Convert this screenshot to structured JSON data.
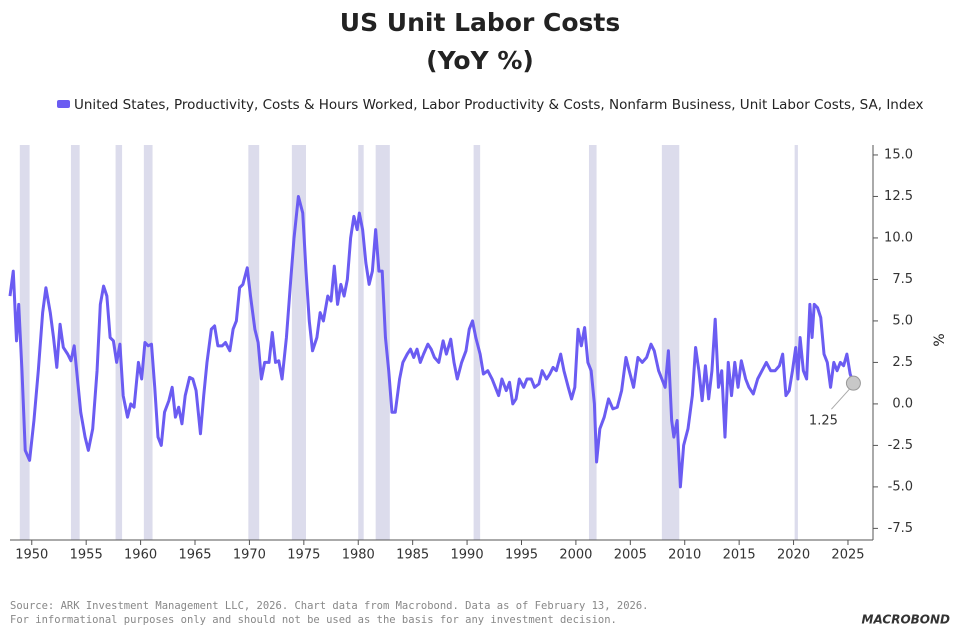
{
  "chart_data": {
    "type": "line",
    "title": "US Unit Labor Costs",
    "subtitle": "(YoY %)",
    "y_axis_label": "%",
    "source": [
      "Source: ARK Investment Management LLC, 2026. Chart data from Macrobond. Data as of February 13, 2026.",
      "For informational purposes only and should not be used as the basis for any investment decision."
    ],
    "logo": "MACROBOND",
    "xlim": [
      1948,
      2027.3
    ],
    "xticks": [
      1950,
      1955,
      1960,
      1965,
      1970,
      1975,
      1980,
      1985,
      1990,
      1995,
      2000,
      2005,
      2010,
      2015,
      2020,
      2025
    ],
    "ylim": [
      -8.2,
      15.6
    ],
    "yticks": [
      {
        "value": -7.5,
        "label": "-7.5"
      },
      {
        "value": -5,
        "label": "-5.0"
      },
      {
        "value": -2.5,
        "label": "-2.5"
      },
      {
        "value": 0,
        "label": "0.0"
      },
      {
        "value": 2.5,
        "label": "2.5"
      },
      {
        "value": 5,
        "label": "5.0"
      },
      {
        "value": 7.5,
        "label": "7.5"
      },
      {
        "value": 10,
        "label": "10.0"
      },
      {
        "value": 12.5,
        "label": "12.5"
      },
      {
        "value": 15,
        "label": "15.0"
      }
    ],
    "grid": false,
    "recession_color": "#dcdcec",
    "recessions": [
      [
        1948.9,
        1949.8
      ],
      [
        1953.6,
        1954.4
      ],
      [
        1957.7,
        1958.3
      ],
      [
        1960.3,
        1961.1
      ],
      [
        1969.9,
        1970.9
      ],
      [
        1973.9,
        1975.2
      ],
      [
        1980.0,
        1980.5
      ],
      [
        1981.6,
        1982.9
      ],
      [
        1990.6,
        1991.2
      ],
      [
        2001.2,
        2001.9
      ],
      [
        2007.9,
        2009.5
      ],
      [
        2020.1,
        2020.4
      ]
    ],
    "x": [
      1948.0,
      1948.3,
      1948.6,
      1948.8,
      1949.1,
      1949.4,
      1949.8,
      1950.2,
      1950.6,
      1951.0,
      1951.3,
      1951.7,
      1952.0,
      1952.3,
      1952.6,
      1952.9,
      1953.3,
      1953.6,
      1953.9,
      1954.2,
      1954.5,
      1954.9,
      1955.2,
      1955.6,
      1956.0,
      1956.3,
      1956.6,
      1956.9,
      1957.2,
      1957.5,
      1957.8,
      1958.1,
      1958.4,
      1958.8,
      1959.1,
      1959.4,
      1959.8,
      1960.1,
      1960.4,
      1960.7,
      1961.0,
      1961.3,
      1961.6,
      1961.9,
      1962.2,
      1962.6,
      1962.9,
      1963.2,
      1963.5,
      1963.8,
      1964.1,
      1964.5,
      1964.8,
      1965.1,
      1965.5,
      1965.8,
      1966.1,
      1966.5,
      1966.8,
      1967.1,
      1967.5,
      1967.8,
      1968.2,
      1968.5,
      1968.8,
      1969.1,
      1969.4,
      1969.8,
      1970.1,
      1970.5,
      1970.8,
      1971.1,
      1971.4,
      1971.8,
      1972.1,
      1972.4,
      1972.7,
      1973.0,
      1973.4,
      1973.8,
      1974.1,
      1974.5,
      1974.9,
      1975.2,
      1975.5,
      1975.8,
      1976.2,
      1976.5,
      1976.8,
      1977.2,
      1977.5,
      1977.8,
      1978.1,
      1978.4,
      1978.7,
      1979.0,
      1979.3,
      1979.6,
      1979.9,
      1980.1,
      1980.4,
      1980.7,
      1981.0,
      1981.3,
      1981.6,
      1981.9,
      1982.2,
      1982.5,
      1982.8,
      1983.1,
      1983.4,
      1983.8,
      1984.1,
      1984.5,
      1984.8,
      1985.1,
      1985.4,
      1985.7,
      1986.0,
      1986.4,
      1986.7,
      1987.0,
      1987.4,
      1987.8,
      1988.1,
      1988.5,
      1988.8,
      1989.1,
      1989.5,
      1989.9,
      1990.2,
      1990.5,
      1990.8,
      1991.2,
      1991.5,
      1991.9,
      1992.3,
      1992.6,
      1992.9,
      1993.2,
      1993.6,
      1993.9,
      1994.2,
      1994.5,
      1994.8,
      1995.2,
      1995.5,
      1995.9,
      1996.2,
      1996.6,
      1996.9,
      1997.3,
      1997.6,
      1997.9,
      1998.2,
      1998.6,
      1998.9,
      1999.3,
      1999.6,
      1999.9,
      2000.2,
      2000.5,
      2000.8,
      2001.1,
      2001.4,
      2001.7,
      2001.9,
      2002.2,
      2002.6,
      2003.0,
      2003.4,
      2003.8,
      2004.2,
      2004.6,
      2004.9,
      2005.3,
      2005.7,
      2006.1,
      2006.5,
      2006.9,
      2007.2,
      2007.6,
      2007.9,
      2008.2,
      2008.5,
      2008.8,
      2009.0,
      2009.3,
      2009.6,
      2009.9,
      2010.3,
      2010.7,
      2011.0,
      2011.3,
      2011.6,
      2011.9,
      2012.2,
      2012.5,
      2012.8,
      2013.1,
      2013.4,
      2013.7,
      2014.0,
      2014.3,
      2014.6,
      2014.9,
      2015.2,
      2015.6,
      2015.9,
      2016.3,
      2016.7,
      2017.1,
      2017.5,
      2017.9,
      2018.3,
      2018.7,
      2019.0,
      2019.3,
      2019.6,
      2019.9,
      2020.2,
      2020.4,
      2020.6,
      2020.9,
      2021.2,
      2021.5,
      2021.7,
      2021.9,
      2022.2,
      2022.5,
      2022.8,
      2023.1,
      2023.4,
      2023.7,
      2024.0,
      2024.3,
      2024.6,
      2024.9,
      2025.2,
      2025.5
    ],
    "series": [
      {
        "name": "United States, Productivity, Costs & Hours Worked, Labor Productivity & Costs, Nonfarm Business, Unit Labor Costs, SA, Index",
        "color": "#6b5cf2",
        "values": [
          6.5,
          8.0,
          3.8,
          6.0,
          2.0,
          -2.8,
          -3.4,
          -1.0,
          2.0,
          5.5,
          7.0,
          5.5,
          4.0,
          2.2,
          4.8,
          3.4,
          3.0,
          2.6,
          3.5,
          1.5,
          -0.5,
          -2.0,
          -2.8,
          -1.5,
          2.0,
          6.0,
          7.1,
          6.5,
          4.0,
          3.8,
          2.5,
          3.6,
          0.5,
          -0.8,
          0.0,
          -0.2,
          2.5,
          1.5,
          3.7,
          3.5,
          3.6,
          1.0,
          -2.0,
          -2.5,
          -0.5,
          0.2,
          1.0,
          -0.8,
          -0.2,
          -1.2,
          0.5,
          1.6,
          1.5,
          0.8,
          -1.8,
          0.5,
          2.5,
          4.5,
          4.7,
          3.5,
          3.5,
          3.7,
          3.2,
          4.5,
          5.0,
          7.0,
          7.2,
          8.2,
          6.5,
          4.5,
          3.7,
          1.5,
          2.5,
          2.5,
          4.3,
          2.5,
          2.6,
          1.5,
          4.0,
          7.5,
          10.0,
          12.5,
          11.5,
          8.0,
          5.0,
          3.2,
          4.0,
          5.5,
          5.0,
          6.5,
          6.2,
          8.3,
          6.0,
          7.2,
          6.5,
          7.5,
          10.0,
          11.3,
          10.5,
          11.5,
          10.5,
          8.5,
          7.2,
          8.0,
          10.5,
          8.0,
          8.0,
          4.0,
          2.0,
          -0.5,
          -0.5,
          1.5,
          2.5,
          3.0,
          3.3,
          2.8,
          3.3,
          2.5,
          3.0,
          3.6,
          3.3,
          2.8,
          2.5,
          3.8,
          3.0,
          3.9,
          2.5,
          1.5,
          2.5,
          3.2,
          4.5,
          5.0,
          4.0,
          3.0,
          1.8,
          2.0,
          1.5,
          1.0,
          0.5,
          1.5,
          0.8,
          1.3,
          0.0,
          0.3,
          1.5,
          1.0,
          1.5,
          1.5,
          1.0,
          1.2,
          2.0,
          1.5,
          1.8,
          2.2,
          2.0,
          3.0,
          2.0,
          1.0,
          0.3,
          1.0,
          4.5,
          3.5,
          4.6,
          2.5,
          2.0,
          0.0,
          -3.5,
          -1.5,
          -0.8,
          0.3,
          -0.3,
          -0.2,
          0.8,
          2.8,
          2.0,
          1.0,
          2.8,
          2.5,
          2.8,
          3.6,
          3.2,
          2.0,
          1.5,
          1.0,
          3.2,
          -1.0,
          -2.0,
          -1.0,
          -5.0,
          -2.5,
          -1.5,
          0.5,
          3.4,
          2.0,
          0.2,
          2.3,
          0.3,
          2.0,
          5.1,
          1.0,
          2.0,
          -2.0,
          2.5,
          0.5,
          2.5,
          1.0,
          2.6,
          1.5,
          1.0,
          0.6,
          1.5,
          2.0,
          2.5,
          2.0,
          2.0,
          2.3,
          3.0,
          0.5,
          0.8,
          2.0,
          3.4,
          1.5,
          4.0,
          2.0,
          1.5,
          6.0,
          4.0,
          6.0,
          5.8,
          5.2,
          3.0,
          2.5,
          1.0,
          2.5,
          2.0,
          2.5,
          2.3,
          3.0,
          1.8,
          1.25
        ]
      }
    ]
  }
}
